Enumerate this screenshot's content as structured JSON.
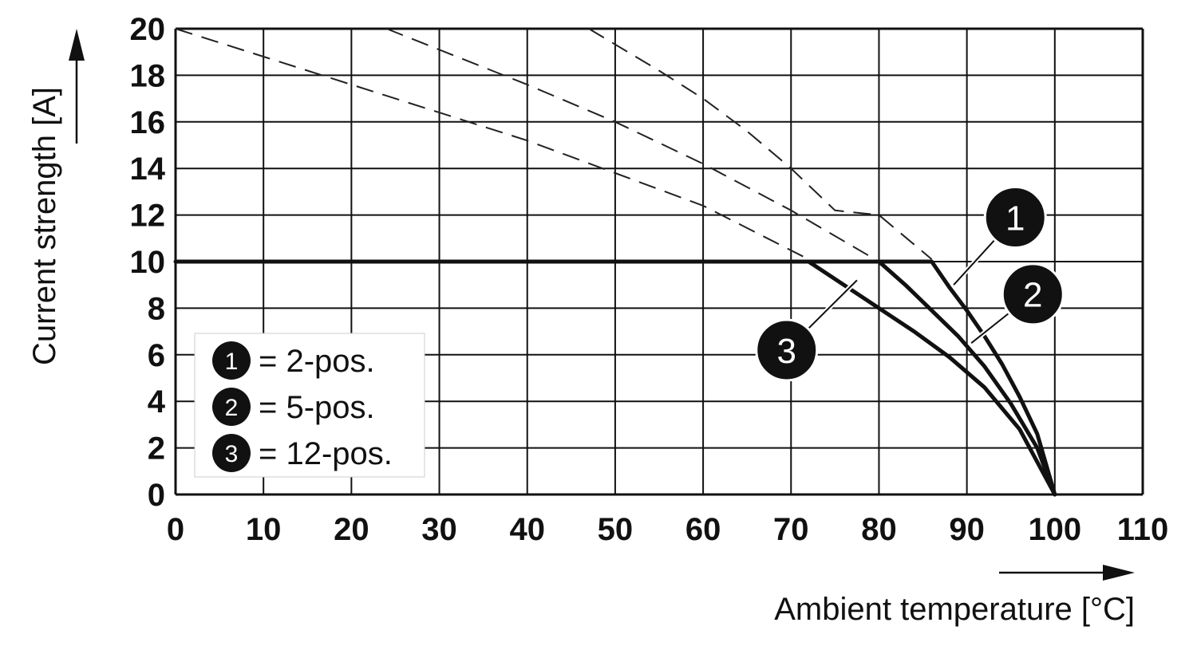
{
  "chart_data": {
    "type": "line",
    "xlabel": "Ambient temperature [°C]",
    "ylabel": "Current strength [A]",
    "xlim": [
      0,
      110
    ],
    "ylim": [
      0,
      20
    ],
    "x_ticks": [
      0,
      10,
      20,
      30,
      40,
      50,
      60,
      70,
      80,
      90,
      100,
      110
    ],
    "y_ticks": [
      0,
      2,
      4,
      6,
      8,
      10,
      12,
      14,
      16,
      18,
      20
    ],
    "grid": true,
    "legend_position": "bottom-left",
    "legend": [
      {
        "badge": "1",
        "label": "= 2-pos."
      },
      {
        "badge": "2",
        "label": "= 5-pos."
      },
      {
        "badge": "3",
        "label": "= 12-pos."
      }
    ],
    "current_limit": 10,
    "series": [
      {
        "badge": "1",
        "dashed": {
          "x": [
            47,
            55,
            60,
            65,
            70,
            75,
            80,
            86
          ],
          "y": [
            20,
            18.2,
            17.0,
            15.6,
            14.0,
            12.2,
            12.0,
            10.1
          ]
        },
        "solid": {
          "x": [
            0,
            86,
            88,
            90,
            92,
            94,
            96,
            98,
            100
          ],
          "y": [
            10,
            10,
            8.9,
            7.9,
            6.8,
            5.6,
            4.2,
            2.6,
            0
          ]
        }
      },
      {
        "badge": "2",
        "dashed": {
          "x": [
            24,
            30,
            40,
            50,
            60,
            70,
            80
          ],
          "y": [
            20,
            19.1,
            17.6,
            16.0,
            14.2,
            12.2,
            10.0
          ]
        },
        "solid": {
          "x": [
            80,
            83,
            86,
            89,
            92,
            95,
            98,
            100
          ],
          "y": [
            10,
            9.0,
            7.9,
            6.8,
            5.5,
            3.9,
            2.0,
            0
          ]
        }
      },
      {
        "badge": "3",
        "dashed": {
          "x": [
            0,
            10,
            20,
            30,
            40,
            50,
            60,
            72
          ],
          "y": [
            20,
            18.8,
            17.6,
            16.4,
            15.2,
            13.8,
            12.4,
            10.1
          ]
        },
        "solid": {
          "x": [
            72,
            76,
            80,
            84,
            88,
            92,
            96,
            100
          ],
          "y": [
            10,
            9.0,
            8.0,
            7.0,
            5.9,
            4.6,
            2.8,
            0
          ]
        }
      }
    ],
    "callouts": [
      {
        "badge": "1",
        "at": [
          95.5,
          11.9
        ],
        "point": [
          88.5,
          9.0
        ]
      },
      {
        "badge": "2",
        "at": [
          97.5,
          8.6
        ],
        "point": [
          90.5,
          6.5
        ]
      },
      {
        "badge": "3",
        "at": [
          69.5,
          6.2
        ],
        "point": [
          77.5,
          9.2
        ]
      }
    ]
  }
}
